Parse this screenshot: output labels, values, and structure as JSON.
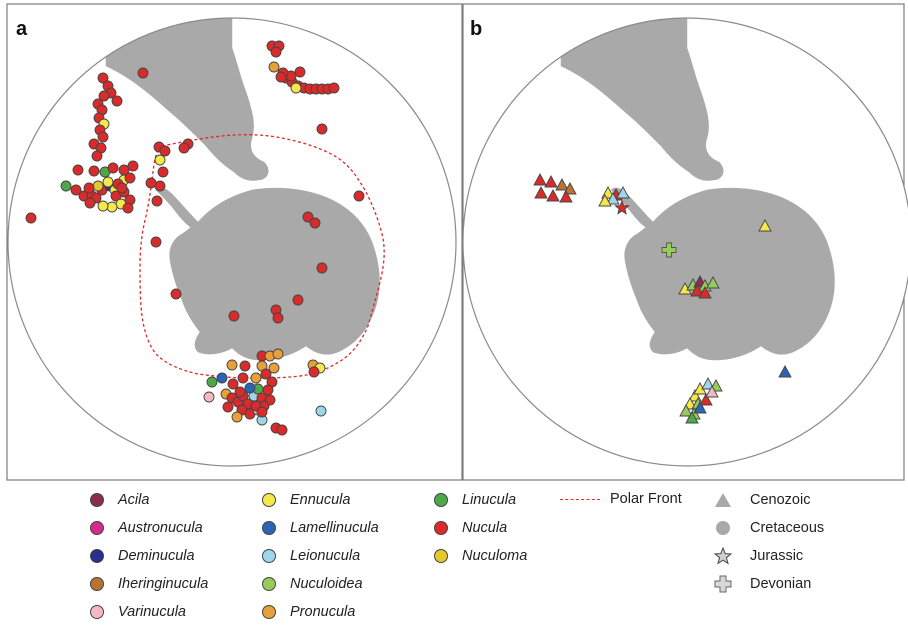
{
  "panels": {
    "a": {
      "label": "a"
    },
    "b": {
      "label": "b"
    }
  },
  "colors": {
    "land": "#a9a9a9",
    "ocean": "#ffffff",
    "globe_outline": "#8a8a8a",
    "polar_front": "#e02828",
    "marker_stroke": "#444444"
  },
  "legend": {
    "genera": [
      {
        "name": "Acila",
        "color": "#8b2b4d"
      },
      {
        "name": "Austronucula",
        "color": "#d42a8c"
      },
      {
        "name": "Deminucula",
        "color": "#2a2f8f"
      },
      {
        "name": "Iheringinucula",
        "color": "#b87333"
      },
      {
        "name": "Varinucula",
        "color": "#f4b8c4"
      },
      {
        "name": "Ennucula",
        "color": "#f5e84a"
      },
      {
        "name": "Lamellinucula",
        "color": "#2a64b4"
      },
      {
        "name": "Leionucula",
        "color": "#9fd6ea"
      },
      {
        "name": "Nuculoidea",
        "color": "#97cc5a"
      },
      {
        "name": "Pronucula",
        "color": "#e8a13a"
      },
      {
        "name": "Linucula",
        "color": "#4ea847"
      },
      {
        "name": "Nucula",
        "color": "#d92b2b"
      },
      {
        "name": "Nuculoma",
        "color": "#e4c82c"
      }
    ],
    "polar_front": "Polar Front",
    "ages": [
      {
        "name": "Cenozoic",
        "symbol": "triangle-icon"
      },
      {
        "name": "Cretaceous",
        "symbol": "circle-icon"
      },
      {
        "name": "Jurassic",
        "symbol": "star-icon"
      },
      {
        "name": "Devonian",
        "symbol": "cross-icon"
      }
    ]
  },
  "map_a_records": [
    {
      "genus": "Nucula",
      "count": 145
    },
    {
      "genus": "Ennucula",
      "count": 18
    },
    {
      "genus": "Pronucula",
      "count": 11
    },
    {
      "genus": "Linucula",
      "count": 8
    },
    {
      "genus": "Leionucula",
      "count": 4
    },
    {
      "genus": "Lamellinucula",
      "count": 2
    },
    {
      "genus": "Deminucula",
      "count": 1
    },
    {
      "genus": "Varinucula",
      "count": 2
    },
    {
      "genus": "Nuculoma",
      "count": 2
    }
  ],
  "map_b_records": [
    {
      "genus": "Nucula",
      "age": "Cenozoic"
    },
    {
      "genus": "Iheringinucula",
      "age": "Cenozoic"
    },
    {
      "genus": "Ennucula",
      "age": "Cenozoic"
    },
    {
      "genus": "Leionucula",
      "age": "Cenozoic"
    },
    {
      "genus": "Acila",
      "age": "Cenozoic"
    },
    {
      "genus": "Nuculoidea",
      "age": "Cenozoic"
    },
    {
      "genus": "Lamellinucula",
      "age": "Cenozoic"
    },
    {
      "genus": "Varinucula",
      "age": "Cenozoic"
    },
    {
      "genus": "Linucula",
      "age": "Cenozoic"
    },
    {
      "genus": "Nucula",
      "age": "Jurassic"
    },
    {
      "genus": "Nuculoidea",
      "age": "Devonian"
    }
  ]
}
